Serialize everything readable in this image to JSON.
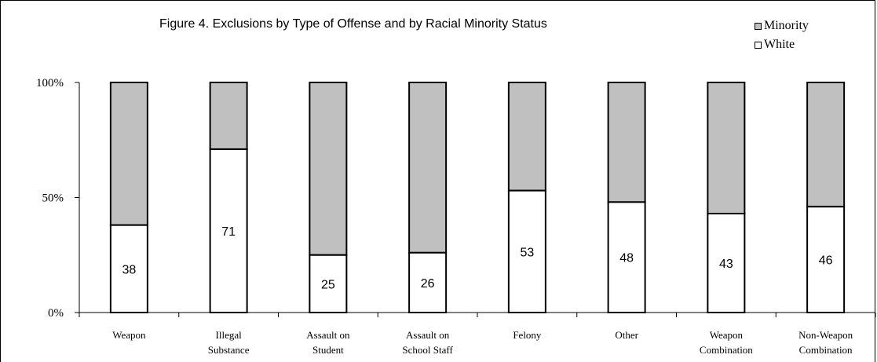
{
  "chart_data": {
    "type": "bar",
    "stacked": "percent",
    "title": "Figure 4. Exclusions by Type of Offense and by Racial Minority Status",
    "categories": [
      [
        "Weapon"
      ],
      [
        "Illegal",
        "Substance"
      ],
      [
        "Assault on",
        "Student"
      ],
      [
        "Assault on",
        "School Staff"
      ],
      [
        "Felony"
      ],
      [
        "Other"
      ],
      [
        "Weapon",
        "Combination"
      ],
      [
        "Non-Weapon",
        "Combination"
      ]
    ],
    "series": [
      {
        "name": "White",
        "color": "#ffffff",
        "values": [
          38,
          71,
          25,
          26,
          53,
          48,
          43,
          46
        ]
      },
      {
        "name": "Minority",
        "color": "#c0c0c0",
        "values": [
          62,
          29,
          75,
          74,
          47,
          52,
          57,
          54
        ]
      }
    ],
    "data_labels": [
      "38",
      "71",
      "25",
      "26",
      "53",
      "48",
      "43",
      "46"
    ],
    "yticks": [
      "0%",
      "50%",
      "100%"
    ],
    "ylim": [
      0,
      100
    ],
    "xlabel": "",
    "ylabel": "",
    "grid": false,
    "legend": [
      "Minority",
      "White"
    ],
    "legend_placement": "top-right"
  }
}
